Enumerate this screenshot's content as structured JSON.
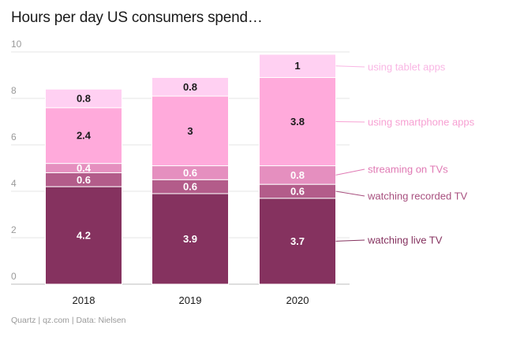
{
  "chart_data": {
    "type": "bar",
    "stacked": true,
    "title": "Hours per day US consumers spend…",
    "source": "Quartz | qz.com | Data: Nielsen",
    "categories": [
      "2018",
      "2019",
      "2020"
    ],
    "ylim": [
      0,
      10
    ],
    "yticks": [
      0,
      2,
      4,
      6,
      8,
      10
    ],
    "series": [
      {
        "name": "watching live TV",
        "values": [
          4.2,
          3.9,
          3.7
        ],
        "color": "#85325f",
        "label_color": "#ffffff",
        "legend_color": "#85325f"
      },
      {
        "name": "watching recorded TV",
        "values": [
          0.6,
          0.6,
          0.6
        ],
        "color": "#b35c8a",
        "label_color": "#ffffff",
        "legend_color": "#a8507f"
      },
      {
        "name": "streaming on TVs",
        "values": [
          0.4,
          0.6,
          0.8
        ],
        "color": "#e58fbf",
        "label_color": "#ffffff",
        "legend_color": "#e07ab4"
      },
      {
        "name": "using smartphone apps",
        "values": [
          2.4,
          3,
          3.8
        ],
        "color": "#ffaadb",
        "label_color": "#1a1a1a",
        "legend_color": "#f7a1d3"
      },
      {
        "name": "using tablet apps",
        "values": [
          0.8,
          0.8,
          1
        ],
        "color": "#ffd0f2",
        "label_color": "#1a1a1a",
        "legend_color": "#f9b6e4"
      }
    ]
  }
}
